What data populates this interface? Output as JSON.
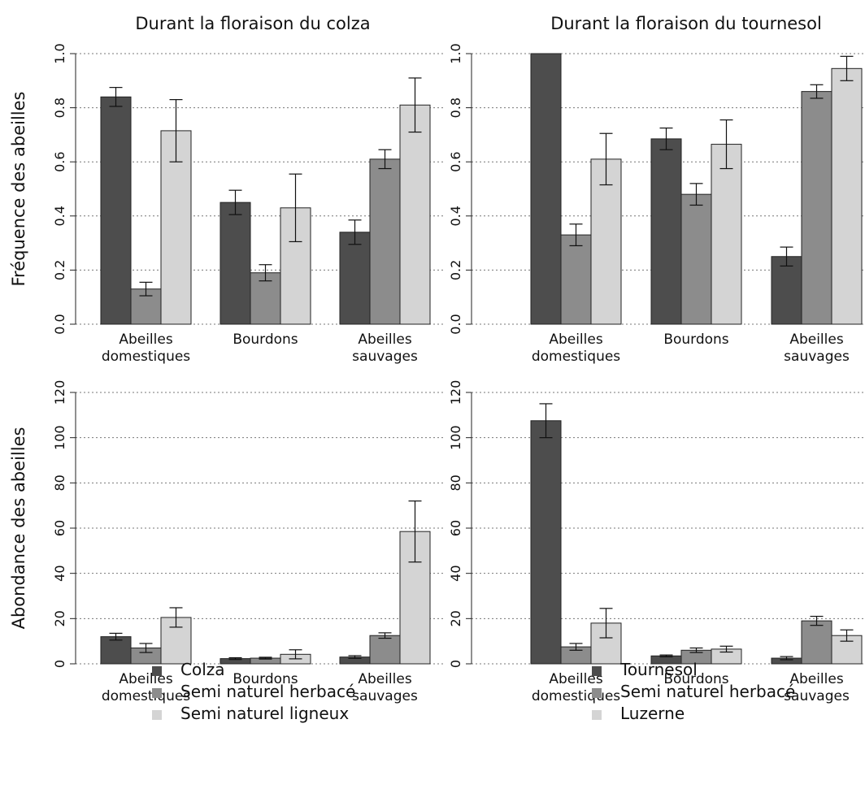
{
  "chart_data": [
    {
      "type": "bar",
      "title": "Durant la floraison du colza",
      "ylabel": "Fréquence des abeilles",
      "ylim": [
        0,
        1.0
      ],
      "yticks": [
        "0.0",
        "0.2",
        "0.4",
        "0.6",
        "0.8",
        "1.0"
      ],
      "grid": "horizontal dotted",
      "categories": [
        [
          "Abeilles",
          "domestiques"
        ],
        [
          "Bourdons"
        ],
        [
          "Abeilles",
          "sauvages"
        ]
      ],
      "series": [
        {
          "name": "Colza",
          "color": "#4d4d4d",
          "values": [
            0.84,
            0.45,
            0.34
          ],
          "err": [
            0.035,
            0.045,
            0.045
          ]
        },
        {
          "name": "Semi naturel herbacé",
          "color": "#8c8c8c",
          "values": [
            0.13,
            0.19,
            0.61
          ],
          "err": [
            0.025,
            0.03,
            0.035
          ]
        },
        {
          "name": "Semi naturel ligneux",
          "color": "#d4d4d4",
          "values": [
            0.715,
            0.43,
            0.81
          ],
          "err": [
            0.115,
            0.125,
            0.1
          ]
        }
      ]
    },
    {
      "type": "bar",
      "title": "Durant la floraison du tournesol",
      "ylabel": "",
      "ylim": [
        0,
        1.0
      ],
      "yticks": [
        "0.0",
        "0.2",
        "0.4",
        "0.6",
        "0.8",
        "1.0"
      ],
      "grid": "horizontal dotted",
      "categories": [
        [
          "Abeilles",
          "domestiques"
        ],
        [
          "Bourdons"
        ],
        [
          "Abeilles",
          "sauvages"
        ]
      ],
      "series": [
        {
          "name": "Tournesol",
          "color": "#4d4d4d",
          "values": [
            1.0,
            0.685,
            0.25
          ],
          "err": [
            0.0,
            0.04,
            0.035
          ]
        },
        {
          "name": "Semi naturel herbacé",
          "color": "#8c8c8c",
          "values": [
            0.33,
            0.48,
            0.86
          ],
          "err": [
            0.04,
            0.04,
            0.025
          ]
        },
        {
          "name": "Luzerne",
          "color": "#d4d4d4",
          "values": [
            0.61,
            0.665,
            0.945
          ],
          "err": [
            0.095,
            0.09,
            0.045
          ]
        }
      ]
    },
    {
      "type": "bar",
      "title": "",
      "ylabel": "Abondance des abeilles",
      "ylim": [
        0,
        120
      ],
      "yticks": [
        "0",
        "20",
        "40",
        "60",
        "80",
        "100",
        "120"
      ],
      "grid": "horizontal dotted",
      "categories": [
        [
          "Abeilles",
          "domestiques"
        ],
        [
          "Bourdons"
        ],
        [
          "Abeilles",
          "sauvages"
        ]
      ],
      "series": [
        {
          "name": "Colza",
          "color": "#4d4d4d",
          "values": [
            12,
            2.3,
            3
          ],
          "err": [
            1.5,
            0.4,
            0.6
          ]
        },
        {
          "name": "Semi naturel herbacé",
          "color": "#8c8c8c",
          "values": [
            7,
            2.5,
            12.5
          ],
          "err": [
            2.0,
            0.4,
            1.2
          ]
        },
        {
          "name": "Semi naturel ligneux",
          "color": "#d4d4d4",
          "values": [
            20.5,
            4.2,
            58.5
          ],
          "err": [
            4.3,
            2.0,
            13.5
          ]
        }
      ]
    },
    {
      "type": "bar",
      "title": "",
      "ylabel": "",
      "ylim": [
        0,
        120
      ],
      "yticks": [
        "0",
        "20",
        "40",
        "60",
        "80",
        "100",
        "120"
      ],
      "grid": "horizontal dotted",
      "categories": [
        [
          "Abeilles",
          "domestiques"
        ],
        [
          "Bourdons"
        ],
        [
          "Abeilles",
          "sauvages"
        ]
      ],
      "series": [
        {
          "name": "Tournesol",
          "color": "#4d4d4d",
          "values": [
            107.5,
            3.5,
            2.5
          ],
          "err": [
            7.5,
            0.4,
            0.7
          ]
        },
        {
          "name": "Semi naturel herbacé",
          "color": "#8c8c8c",
          "values": [
            7.5,
            6,
            19
          ],
          "err": [
            1.5,
            1.0,
            2.0
          ]
        },
        {
          "name": "Luzerne",
          "color": "#d4d4d4",
          "values": [
            18,
            6.5,
            12.5
          ],
          "err": [
            6.5,
            1.3,
            2.5
          ]
        }
      ]
    }
  ],
  "legends": [
    {
      "items": [
        {
          "label": "Colza",
          "color": "#4d4d4d"
        },
        {
          "label": "Semi naturel herbacé",
          "color": "#8c8c8c"
        },
        {
          "label": "Semi naturel ligneux",
          "color": "#d4d4d4"
        }
      ]
    },
    {
      "items": [
        {
          "label": "Tournesol",
          "color": "#4d4d4d"
        },
        {
          "label": "Semi naturel herbacé",
          "color": "#8c8c8c"
        },
        {
          "label": "Luzerne",
          "color": "#d4d4d4"
        }
      ]
    }
  ]
}
